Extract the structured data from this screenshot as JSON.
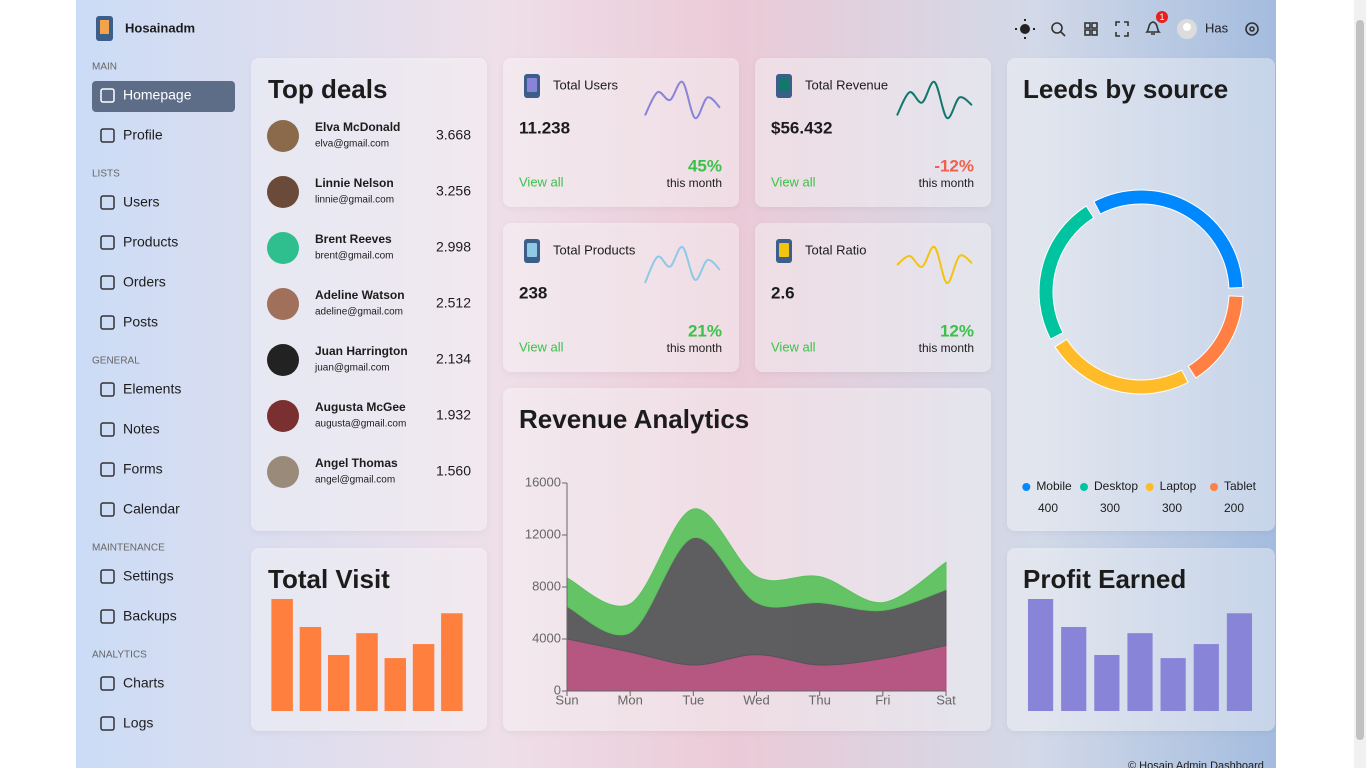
{
  "header": {
    "brand": "Hosainadm",
    "user": "Has",
    "notifications": "1"
  },
  "sidebar": {
    "sections": [
      {
        "title": "MAIN",
        "items": [
          "Homepage",
          "Profile"
        ]
      },
      {
        "title": "LISTS",
        "items": [
          "Users",
          "Products",
          "Orders",
          "Posts"
        ]
      },
      {
        "title": "GENERAL",
        "items": [
          "Elements",
          "Notes",
          "Forms",
          "Calendar"
        ]
      },
      {
        "title": "MAINTENANCE",
        "items": [
          "Settings",
          "Backups"
        ]
      },
      {
        "title": "ANALYTICS",
        "items": [
          "Charts",
          "Logs"
        ]
      }
    ]
  },
  "top_deals": {
    "title": "Top deals",
    "deals": [
      {
        "name": "Elva McDonald",
        "email": "elva@gmail.com",
        "amount": "3.668"
      },
      {
        "name": "Linnie Nelson",
        "email": "linnie@gmail.com",
        "amount": "3.256"
      },
      {
        "name": "Brent Reeves",
        "email": "brent@gmail.com",
        "amount": "2.998"
      },
      {
        "name": "Adeline Watson",
        "email": "adeline@gmail.com",
        "amount": "2.512"
      },
      {
        "name": "Juan Harrington",
        "email": "juan@gmail.com",
        "amount": "2.134"
      },
      {
        "name": "Augusta McGee",
        "email": "augusta@gmail.com",
        "amount": "1.932"
      },
      {
        "name": "Angel Thomas",
        "email": "angel@gmail.com",
        "amount": "1.560"
      }
    ]
  },
  "stats": [
    {
      "title": "Total Users",
      "value": "11.238",
      "change": "45%",
      "period": "this month",
      "link": "View all"
    },
    {
      "title": "Total Revenue",
      "value": "$56.432",
      "change": "-12%",
      "period": "this month",
      "link": "View all"
    },
    {
      "title": "Total Products",
      "value": "238",
      "change": "21%",
      "period": "this month",
      "link": "View all"
    },
    {
      "title": "Total Ratio",
      "value": "2.6",
      "change": "12%",
      "period": "this month",
      "link": "View all"
    }
  ],
  "chart_data": [
    {
      "type": "line",
      "color": "#8884d8",
      "values": [
        10,
        28,
        22,
        36,
        8,
        24,
        16
      ]
    },
    {
      "type": "line",
      "color": "#12786c",
      "values": [
        12,
        30,
        22,
        38,
        10,
        26,
        20
      ]
    },
    {
      "type": "line",
      "color": "#8ecae6",
      "values": [
        8,
        24,
        18,
        30,
        10,
        22,
        16
      ]
    },
    {
      "type": "line",
      "color": "#f2c40f",
      "values": [
        20,
        30,
        18,
        40,
        0,
        30,
        22
      ]
    },
    {
      "type": "pie",
      "title": "Leeds by source",
      "categories": [
        "Mobile",
        "Desktop",
        "Laptop",
        "Tablet"
      ],
      "values": [
        400,
        300,
        300,
        200
      ],
      "colors": [
        "#0088fe",
        "#00c49f",
        "#ffbb28",
        "#ff8042"
      ]
    },
    {
      "type": "area",
      "title": "Revenue Analytics",
      "stacked": true,
      "categories": [
        "Sun",
        "Mon",
        "Tue",
        "Wed",
        "Thu",
        "Fri",
        "Sat"
      ],
      "ylim": [
        0,
        16000
      ],
      "yticks": [
        0,
        4000,
        8000,
        12000,
        16000
      ],
      "series": [
        {
          "color": "#b24f7c",
          "values": [
            4000,
            3000,
            2000,
            2800,
            2000,
            2500,
            3500
          ]
        },
        {
          "color": "#555559",
          "values": [
            2500,
            1500,
            9800,
            4000,
            4800,
            3700,
            4300
          ]
        },
        {
          "color": "#5cc15e",
          "values": [
            2200,
            2200,
            2200,
            2000,
            2000,
            600,
            2100
          ]
        }
      ]
    },
    {
      "type": "bar",
      "title": "Total Visit",
      "color": "#ff7f3e",
      "values": [
        4000,
        3000,
        2000,
        2780,
        1890,
        2390,
        3490
      ]
    },
    {
      "type": "bar",
      "title": "Profit Earned",
      "color": "#8884d8",
      "values": [
        4000,
        3000,
        2000,
        2780,
        1890,
        2390,
        3490
      ]
    }
  ],
  "footer": {
    "copyright": "© Hosain Admin Dashboard"
  }
}
